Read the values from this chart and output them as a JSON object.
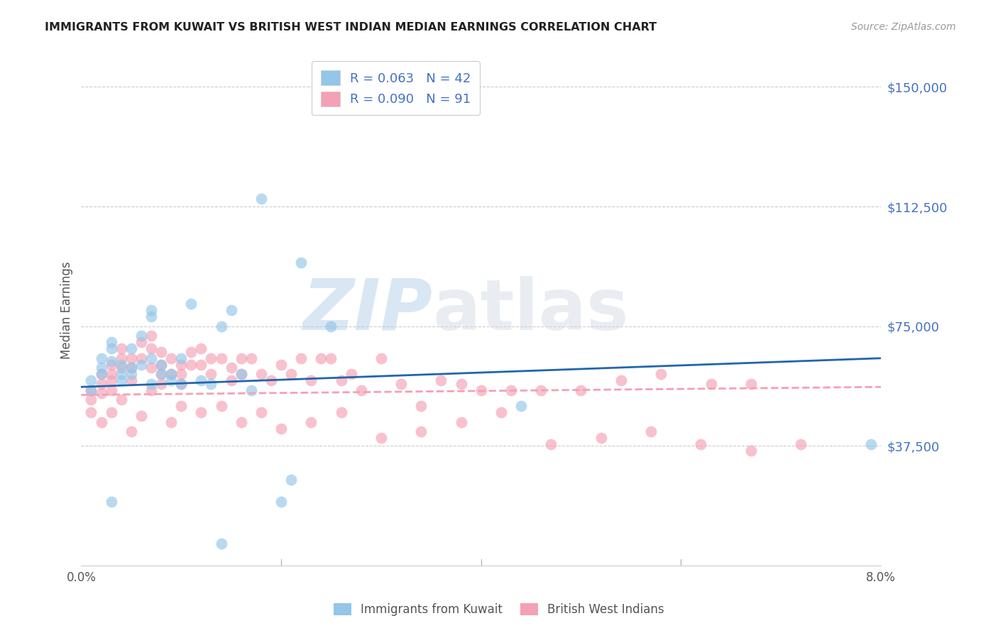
{
  "title": "IMMIGRANTS FROM KUWAIT VS BRITISH WEST INDIAN MEDIAN EARNINGS CORRELATION CHART",
  "source": "Source: ZipAtlas.com",
  "ylabel": "Median Earnings",
  "ytick_labels": [
    "$150,000",
    "$112,500",
    "$75,000",
    "$37,500"
  ],
  "ytick_values": [
    150000,
    112500,
    75000,
    37500
  ],
  "ylim": [
    0,
    160000
  ],
  "xlim": [
    0.0,
    0.08
  ],
  "legend1_r": "0.063",
  "legend1_n": "42",
  "legend2_r": "0.090",
  "legend2_n": "91",
  "color_blue": "#93c6e8",
  "color_pink": "#f4a0b5",
  "color_blue_line": "#2166ac",
  "color_pink_line": "#f4a0b5",
  "watermark_zip": "ZIP",
  "watermark_atlas": "atlas",
  "label_kuwait": "Immigrants from Kuwait",
  "label_bwi": "British West Indians",
  "kuwait_x": [
    0.001,
    0.001,
    0.002,
    0.002,
    0.002,
    0.003,
    0.003,
    0.003,
    0.004,
    0.004,
    0.004,
    0.005,
    0.005,
    0.006,
    0.006,
    0.007,
    0.007,
    0.007,
    0.008,
    0.008,
    0.009,
    0.009,
    0.01,
    0.01,
    0.011,
    0.012,
    0.013,
    0.014,
    0.015,
    0.016,
    0.017,
    0.018,
    0.02,
    0.021,
    0.025,
    0.003,
    0.005,
    0.007,
    0.014,
    0.044,
    0.079,
    0.022
  ],
  "kuwait_y": [
    58000,
    55000,
    65000,
    62000,
    60000,
    70000,
    68000,
    64000,
    63000,
    60000,
    58000,
    62000,
    60000,
    72000,
    63000,
    78000,
    80000,
    65000,
    63000,
    60000,
    60000,
    58000,
    57000,
    65000,
    82000,
    58000,
    57000,
    75000,
    80000,
    60000,
    55000,
    115000,
    20000,
    27000,
    75000,
    20000,
    68000,
    57000,
    7000,
    50000,
    38000,
    95000
  ],
  "bwi_x": [
    0.001,
    0.001,
    0.001,
    0.002,
    0.002,
    0.002,
    0.003,
    0.003,
    0.003,
    0.003,
    0.004,
    0.004,
    0.004,
    0.005,
    0.005,
    0.005,
    0.006,
    0.006,
    0.007,
    0.007,
    0.007,
    0.008,
    0.008,
    0.008,
    0.009,
    0.009,
    0.01,
    0.01,
    0.01,
    0.011,
    0.011,
    0.012,
    0.012,
    0.013,
    0.013,
    0.014,
    0.015,
    0.015,
    0.016,
    0.016,
    0.017,
    0.018,
    0.019,
    0.02,
    0.021,
    0.022,
    0.023,
    0.024,
    0.025,
    0.026,
    0.027,
    0.028,
    0.03,
    0.032,
    0.034,
    0.036,
    0.038,
    0.04,
    0.043,
    0.046,
    0.05,
    0.054,
    0.058,
    0.063,
    0.067,
    0.002,
    0.003,
    0.004,
    0.005,
    0.006,
    0.007,
    0.008,
    0.009,
    0.01,
    0.012,
    0.014,
    0.016,
    0.018,
    0.02,
    0.023,
    0.026,
    0.03,
    0.034,
    0.038,
    0.042,
    0.047,
    0.052,
    0.057,
    0.062,
    0.067,
    0.072
  ],
  "bwi_y": [
    55000,
    52000,
    48000,
    60000,
    57000,
    54000,
    63000,
    60000,
    58000,
    55000,
    68000,
    65000,
    62000,
    65000,
    62000,
    58000,
    70000,
    65000,
    72000,
    68000,
    62000,
    67000,
    63000,
    60000,
    65000,
    60000,
    63000,
    60000,
    57000,
    67000,
    63000,
    68000,
    63000,
    65000,
    60000,
    65000,
    62000,
    58000,
    65000,
    60000,
    65000,
    60000,
    58000,
    63000,
    60000,
    65000,
    58000,
    65000,
    65000,
    58000,
    60000,
    55000,
    65000,
    57000,
    50000,
    58000,
    57000,
    55000,
    55000,
    55000,
    55000,
    58000,
    60000,
    57000,
    57000,
    45000,
    48000,
    52000,
    42000,
    47000,
    55000,
    57000,
    45000,
    50000,
    48000,
    50000,
    45000,
    48000,
    43000,
    45000,
    48000,
    40000,
    42000,
    45000,
    48000,
    38000,
    40000,
    42000,
    38000,
    36000,
    38000
  ],
  "kuwait_trend_x": [
    0.0,
    0.08
  ],
  "kuwait_trend_y": [
    56000,
    65000
  ],
  "bwi_trend_x": [
    0.0,
    0.08
  ],
  "bwi_trend_y": [
    53500,
    56000
  ]
}
